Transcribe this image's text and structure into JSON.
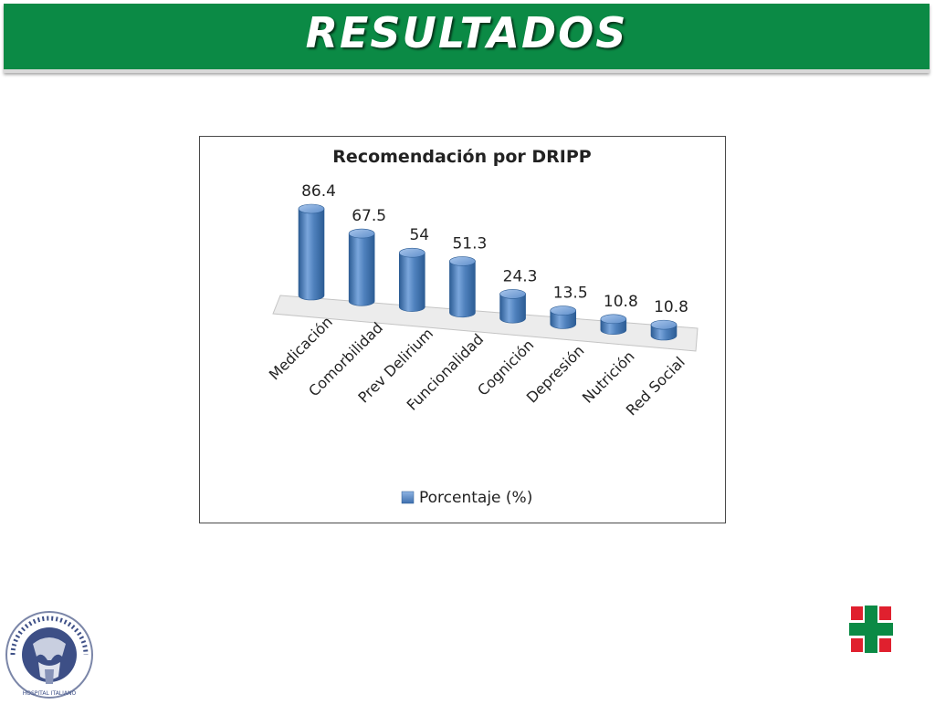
{
  "slide": {
    "title": "RESULTADOS"
  },
  "chart_data": {
    "type": "bar",
    "title": "Recomendación por DRIPP",
    "categories": [
      "Medicación",
      "Comorbilidad",
      "Prev Delirium",
      "Funcionalidad",
      "Cognición",
      "Depresión",
      "Nutrición",
      "Red Social"
    ],
    "series": [
      {
        "name": "Porcentaje (%)",
        "values": [
          86.4,
          67.5,
          54,
          51.3,
          24.3,
          13.5,
          10.8,
          10.8
        ]
      }
    ],
    "data_labels": [
      "86.4",
      "67.5",
      "54",
      "51.3",
      "24.3",
      "13.5",
      "10.8",
      "10.8"
    ],
    "style": "3d-cylinder",
    "legend_position": "bottom",
    "grid": false,
    "colors": {
      "bar": "#4f81bd",
      "bar_dark": "#2c5c94",
      "bar_light": "#8fb4e3"
    }
  },
  "logos": {
    "left": {
      "text_top": "SECTOR RODILLA DEGENERATIVA",
      "text_bottom": "HOSPITAL · ITALIANO"
    },
    "right": {
      "icon": "hospital-cross-logo",
      "colors": [
        "#e0202e",
        "#0b8a45"
      ]
    }
  },
  "colors": {
    "title_bar": "#0b8a45",
    "title_text": "#ffffff"
  }
}
